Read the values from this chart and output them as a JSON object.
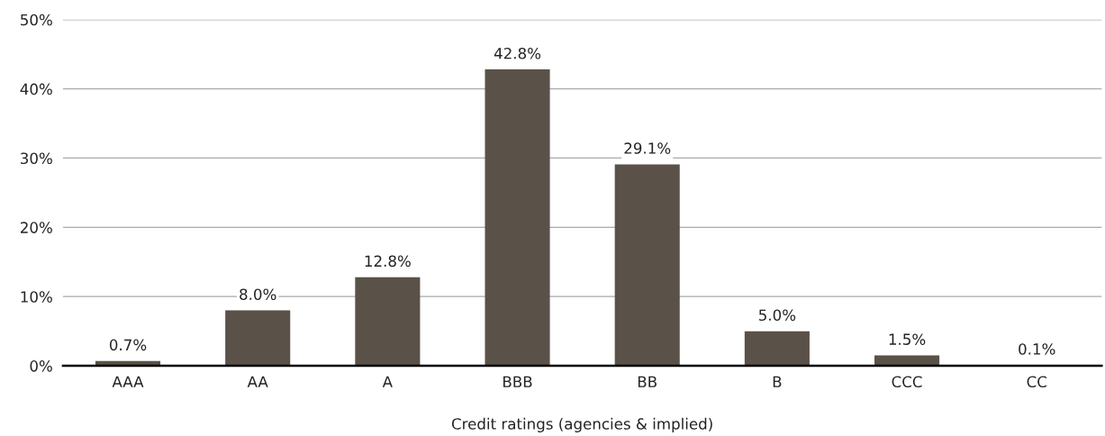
{
  "chart_data": {
    "type": "bar",
    "xlabel": "Credit ratings (agencies & implied)",
    "categories": [
      "AAA",
      "AA",
      "A",
      "BBB",
      "BB",
      "B",
      "CCC",
      "CC"
    ],
    "values": [
      0.7,
      8.0,
      12.8,
      42.8,
      29.1,
      5.0,
      1.5,
      0.1
    ],
    "value_labels": [
      "0.7%",
      "8.0%",
      "12.8%",
      "42.8%",
      "29.1%",
      "5.0%",
      "1.5%",
      "0.1%"
    ],
    "color": "#5a5148",
    "ylim": [
      0,
      50
    ],
    "yticks": [
      {
        "value": 0,
        "label": "0%"
      },
      {
        "value": 10,
        "label": "10%"
      },
      {
        "value": 20,
        "label": "20%"
      },
      {
        "value": 30,
        "label": "30%"
      },
      {
        "value": 40,
        "label": "40%"
      },
      {
        "value": 50,
        "label": "50%"
      }
    ],
    "grid": "y",
    "legend": false
  }
}
